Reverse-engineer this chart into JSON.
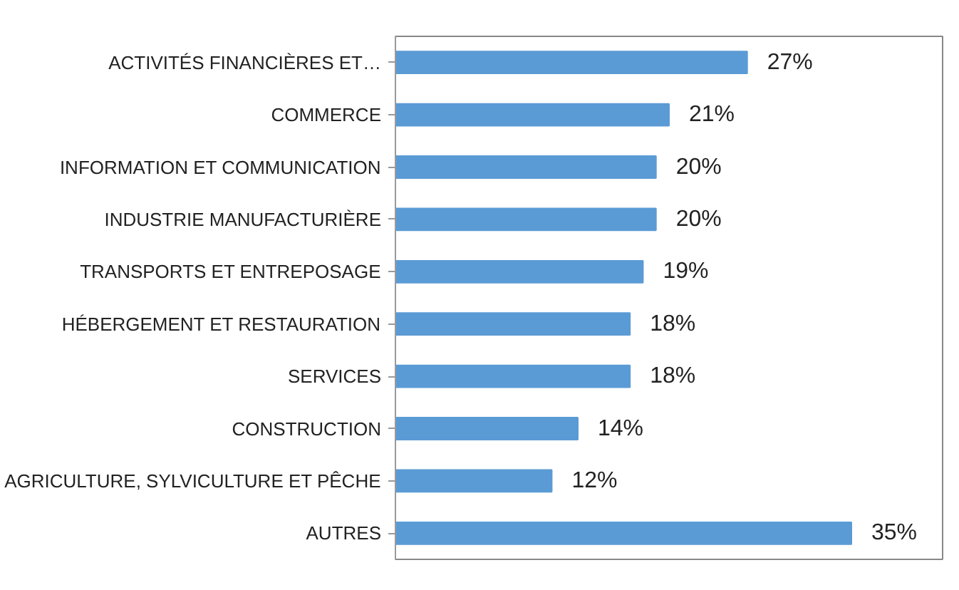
{
  "chart_data": {
    "type": "bar",
    "orientation": "horizontal",
    "categories": [
      "ACTIVITÉS FINANCIÈRES ET…",
      "COMMERCE",
      "INFORMATION ET COMMUNICATION",
      "INDUSTRIE MANUFACTURIÈRE",
      "TRANSPORTS ET ENTREPOSAGE",
      "HÉBERGEMENT ET RESTAURATION",
      "SERVICES",
      "CONSTRUCTION",
      "AGRICULTURE, SYLVICULTURE ET PÊCHE",
      "AUTRES"
    ],
    "values": [
      27,
      21,
      20,
      20,
      19,
      18,
      18,
      14,
      12,
      35
    ],
    "value_labels": [
      "27%",
      "21%",
      "20%",
      "20%",
      "19%",
      "18%",
      "18%",
      "14%",
      "12%",
      "35%"
    ],
    "color": "#5b9bd5",
    "grid": false
  }
}
